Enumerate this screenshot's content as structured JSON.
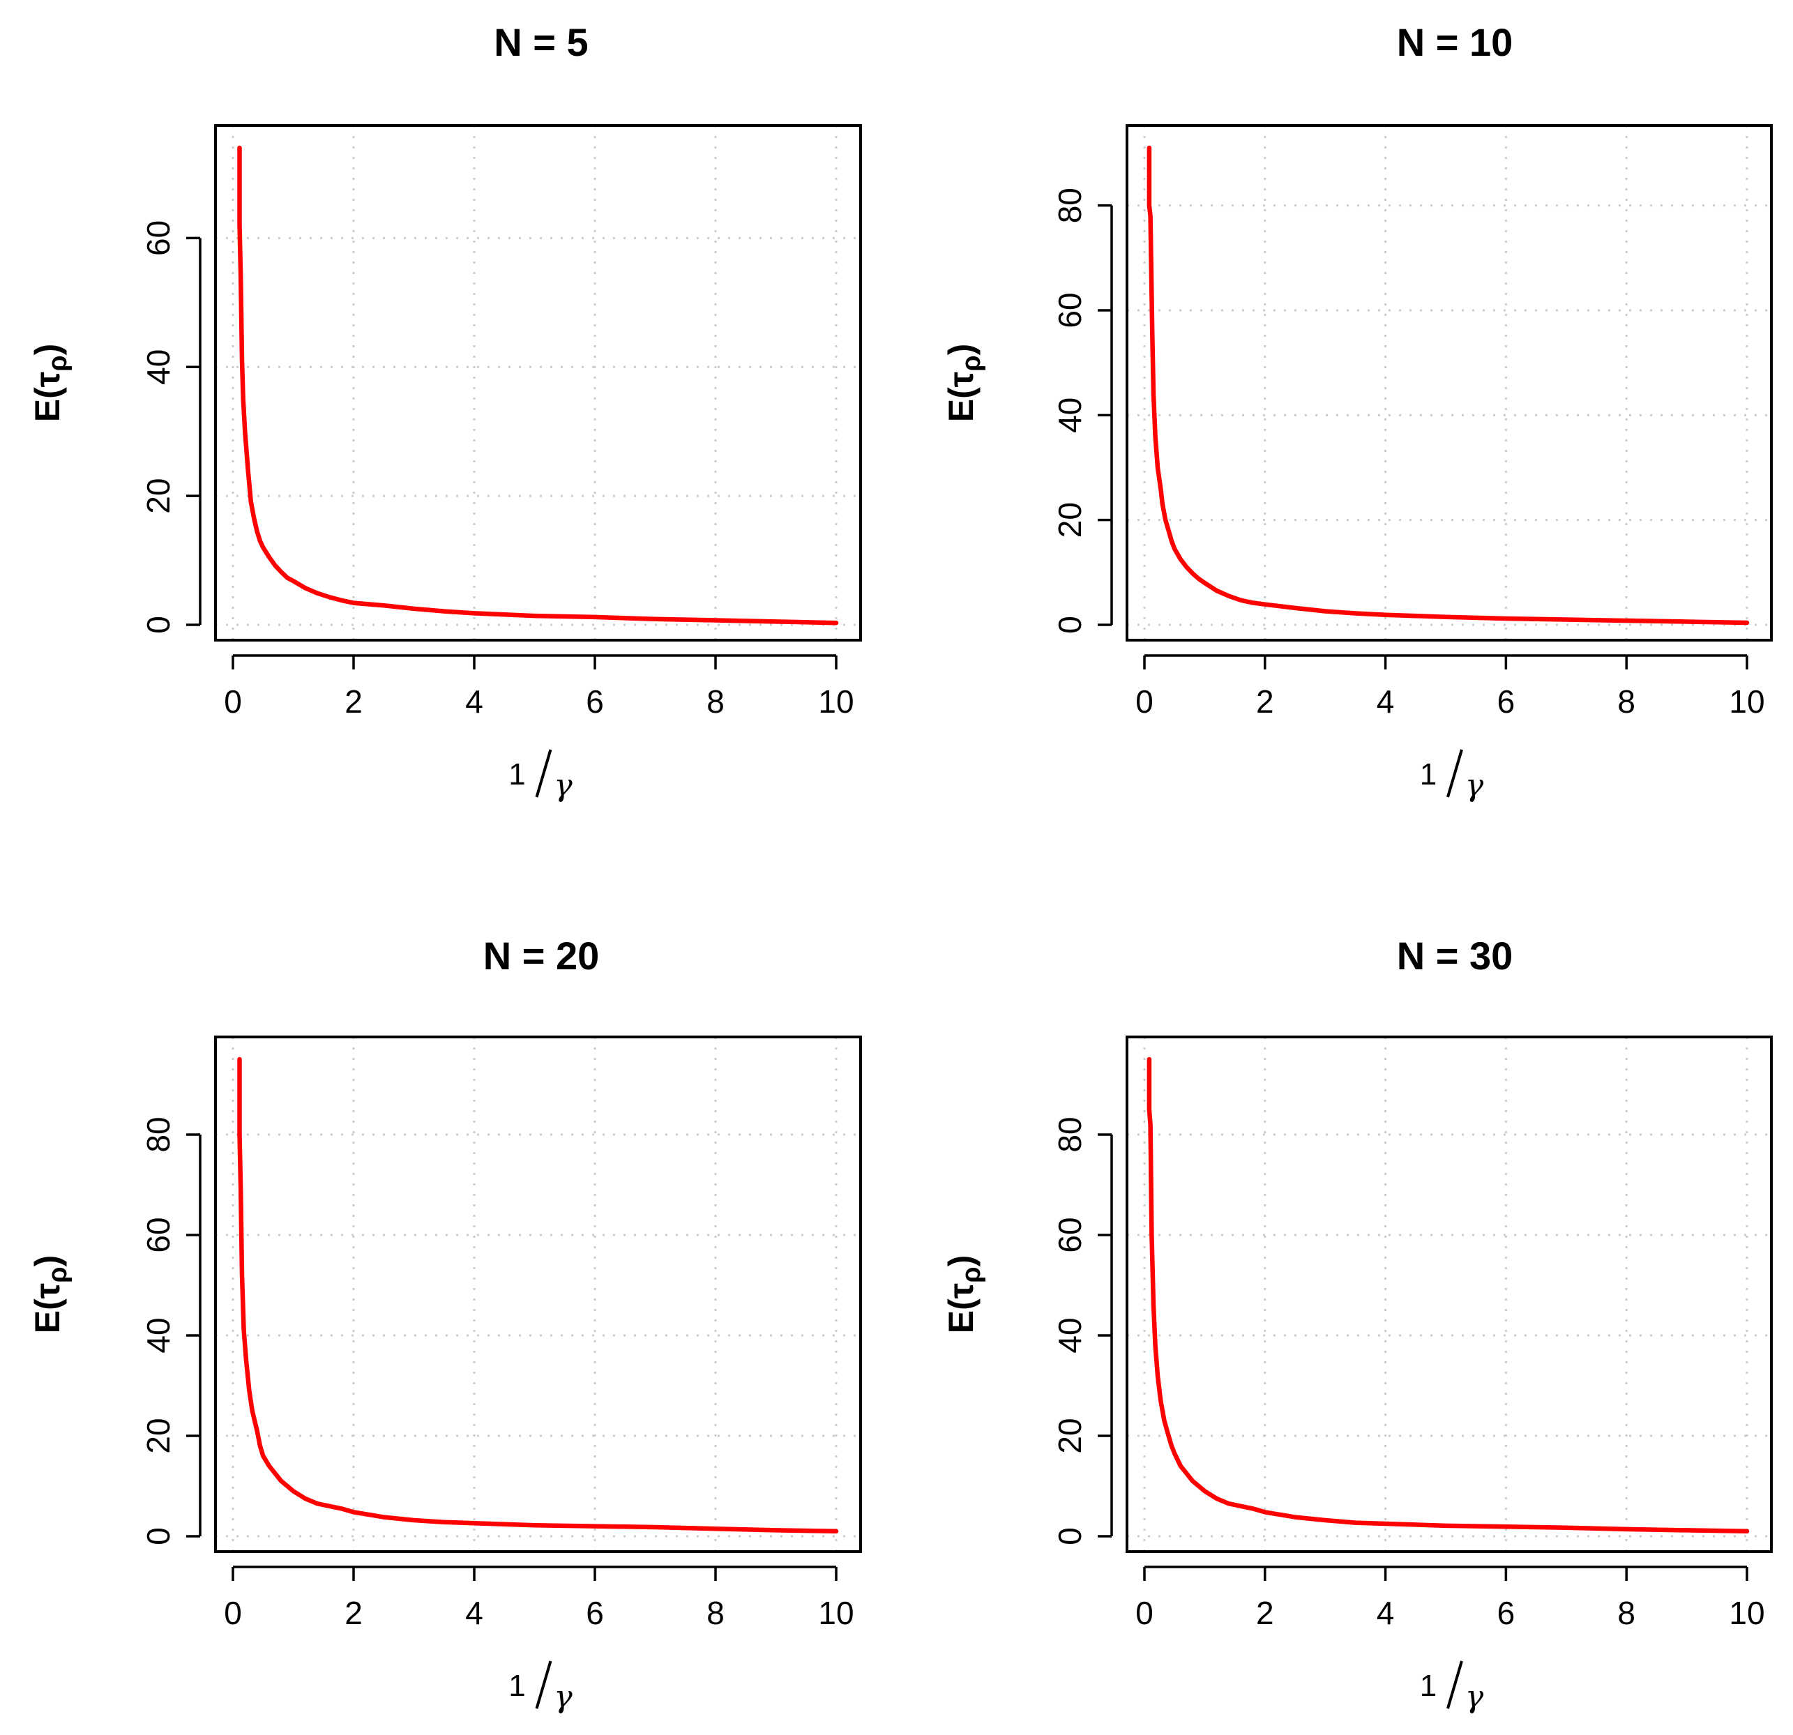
{
  "figure": {
    "series_color": "#ff0000",
    "panels": [
      {
        "title": "N = 5"
      },
      {
        "title": "N = 10"
      },
      {
        "title": "N = 20"
      },
      {
        "title": "N = 30"
      }
    ]
  },
  "chart_data": [
    {
      "type": "line",
      "title": "N = 5",
      "xlabel": "1/γ",
      "ylabel": "E(τρ)",
      "xlim": [
        0,
        10
      ],
      "ylim": [
        0,
        74
      ],
      "xticks": [
        "0",
        "2",
        "4",
        "6",
        "8",
        "10"
      ],
      "yticks": [
        "0",
        "20",
        "40",
        "60"
      ],
      "grid": true,
      "series": [
        {
          "x": [
            0.11,
            0.11,
            0.13,
            0.15,
            0.17,
            0.2,
            0.25,
            0.3,
            0.35,
            0.4,
            0.45,
            0.5,
            0.6,
            0.7,
            0.8,
            0.9,
            1.0,
            1.2,
            1.4,
            1.6,
            1.8,
            2.0,
            2.5,
            3.0,
            3.5,
            4.0,
            5.0,
            6.0,
            7.0,
            8.0,
            9.0,
            10.0
          ],
          "y": [
            74,
            62,
            54,
            41,
            35,
            30,
            24,
            19,
            16.5,
            14.5,
            13,
            12,
            10.5,
            9.2,
            8.2,
            7.3,
            6.8,
            5.7,
            4.9,
            4.3,
            3.8,
            3.4,
            3.0,
            2.5,
            2.1,
            1.8,
            1.4,
            1.2,
            0.9,
            0.7,
            0.5,
            0.3
          ]
        }
      ]
    },
    {
      "type": "line",
      "title": "N = 10",
      "xlabel": "1/γ",
      "ylabel": "E(τρ)",
      "xlim": [
        0,
        10
      ],
      "ylim": [
        0,
        91
      ],
      "xticks": [
        "0",
        "2",
        "4",
        "6",
        "8",
        "10"
      ],
      "yticks": [
        "0",
        "20",
        "40",
        "60",
        "80"
      ],
      "grid": true,
      "series": [
        {
          "x": [
            0.08,
            0.08,
            0.1,
            0.13,
            0.15,
            0.18,
            0.22,
            0.27,
            0.3,
            0.35,
            0.4,
            0.45,
            0.5,
            0.6,
            0.7,
            0.8,
            0.9,
            1.0,
            1.2,
            1.4,
            1.6,
            1.8,
            2.0,
            2.5,
            3.0,
            3.5,
            4.0,
            5.0,
            6.0,
            7.0,
            8.0,
            9.0,
            10.0
          ],
          "y": [
            91,
            80,
            78,
            56,
            44,
            36,
            30,
            26,
            23,
            20,
            18,
            16,
            14.5,
            12.5,
            11,
            9.8,
            8.8,
            8.0,
            6.5,
            5.5,
            4.7,
            4.2,
            3.9,
            3.2,
            2.6,
            2.2,
            1.9,
            1.5,
            1.2,
            1.0,
            0.8,
            0.6,
            0.4
          ]
        }
      ]
    },
    {
      "type": "line",
      "title": "N = 20",
      "xlabel": "1/γ",
      "ylabel": "E(τρ)",
      "xlim": [
        0,
        10
      ],
      "ylim": [
        0,
        95
      ],
      "xticks": [
        "0",
        "2",
        "4",
        "6",
        "8",
        "10"
      ],
      "yticks": [
        "0",
        "20",
        "40",
        "60",
        "80"
      ],
      "grid": true,
      "series": [
        {
          "x": [
            0.11,
            0.11,
            0.13,
            0.15,
            0.18,
            0.22,
            0.27,
            0.32,
            0.4,
            0.45,
            0.5,
            0.6,
            0.7,
            0.8,
            0.9,
            1.0,
            1.2,
            1.4,
            1.6,
            1.8,
            2.0,
            2.5,
            3.0,
            3.5,
            4.0,
            5.0,
            6.0,
            7.0,
            8.0,
            9.0,
            10.0
          ],
          "y": [
            95,
            80,
            69,
            52,
            41,
            35,
            29,
            25,
            21,
            18,
            16,
            14,
            12.5,
            11,
            10,
            9,
            7.5,
            6.5,
            6,
            5.5,
            4.8,
            3.8,
            3.2,
            2.8,
            2.6,
            2.2,
            2.0,
            1.8,
            1.5,
            1.2,
            1.0
          ]
        }
      ]
    },
    {
      "type": "line",
      "title": "N = 30",
      "xlabel": "1/γ",
      "ylabel": "E(τρ)",
      "xlim": [
        0,
        10
      ],
      "ylim": [
        0,
        95
      ],
      "xticks": [
        "0",
        "2",
        "4",
        "6",
        "8",
        "10"
      ],
      "yticks": [
        "0",
        "20",
        "40",
        "60",
        "80"
      ],
      "grid": true,
      "series": [
        {
          "x": [
            0.08,
            0.08,
            0.1,
            0.12,
            0.15,
            0.18,
            0.22,
            0.27,
            0.33,
            0.4,
            0.45,
            0.5,
            0.6,
            0.7,
            0.8,
            0.9,
            1.0,
            1.2,
            1.4,
            1.6,
            1.8,
            2.0,
            2.5,
            3.0,
            3.5,
            4.0,
            5.0,
            6.0,
            7.0,
            8.0,
            9.0,
            10.0
          ],
          "y": [
            95,
            85,
            82,
            60,
            46,
            38,
            32,
            27,
            23,
            20,
            18,
            16.5,
            14,
            12.5,
            11,
            10,
            9,
            7.5,
            6.5,
            6,
            5.5,
            4.8,
            3.8,
            3.2,
            2.7,
            2.5,
            2.1,
            1.9,
            1.7,
            1.4,
            1.2,
            1.0
          ]
        }
      ]
    }
  ]
}
